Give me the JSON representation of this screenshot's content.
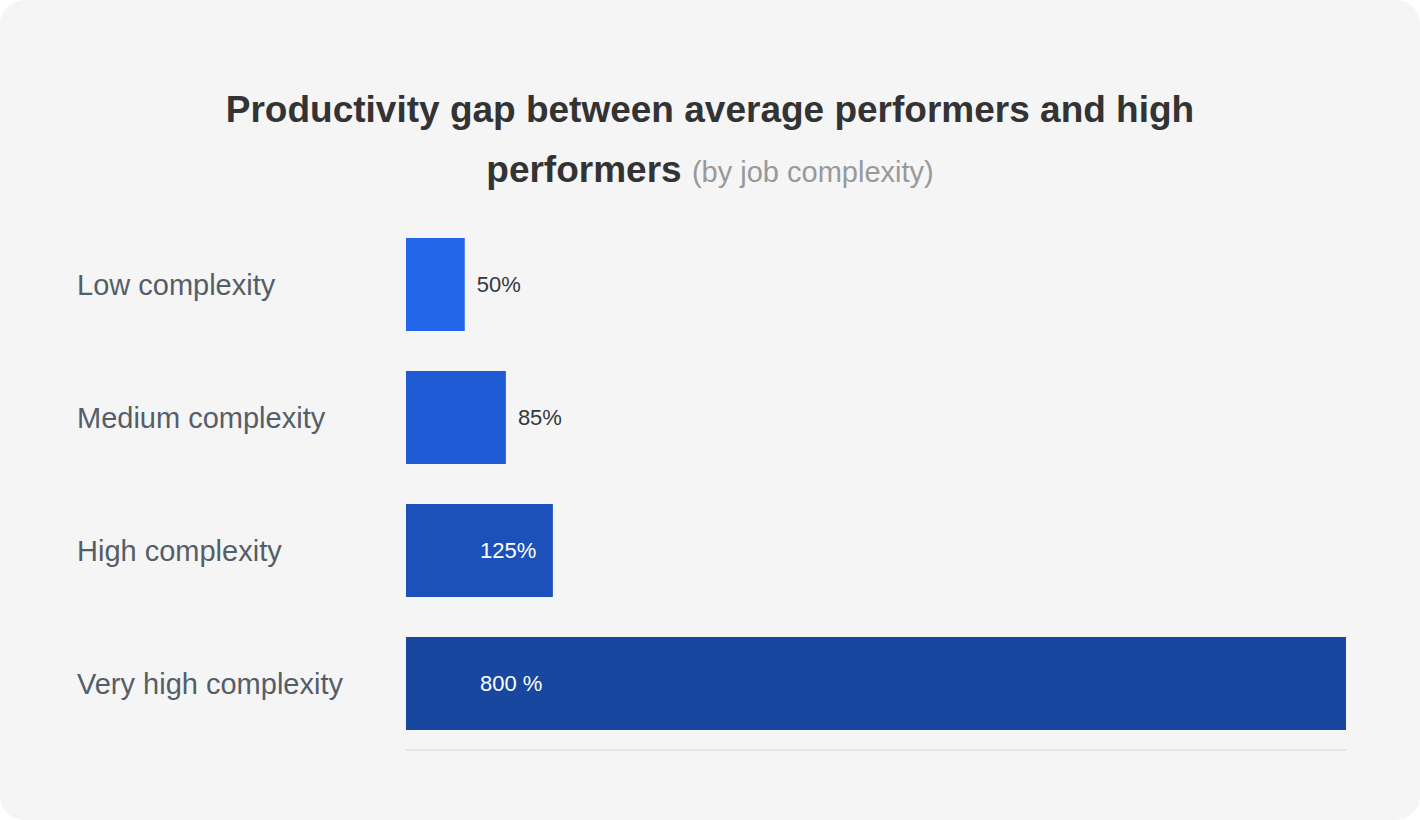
{
  "chart_data": {
    "type": "bar",
    "title": "Productivity gap between average performers and high performers",
    "subtitle": "(by job complexity)",
    "orientation": "horizontal",
    "categories": [
      "Low complexity",
      "Medium complexity",
      "High complexity",
      "Very high complexity"
    ],
    "values": [
      50,
      85,
      125,
      800
    ],
    "value_labels": [
      "50%",
      "85%",
      "125%",
      "800 %"
    ],
    "data_labels": true,
    "colors": [
      "#2366ea",
      "#1f5bd4",
      "#1c51bb",
      "#17479f"
    ],
    "xlim": [
      0,
      800
    ],
    "tick_labels": false,
    "grid": false
  }
}
